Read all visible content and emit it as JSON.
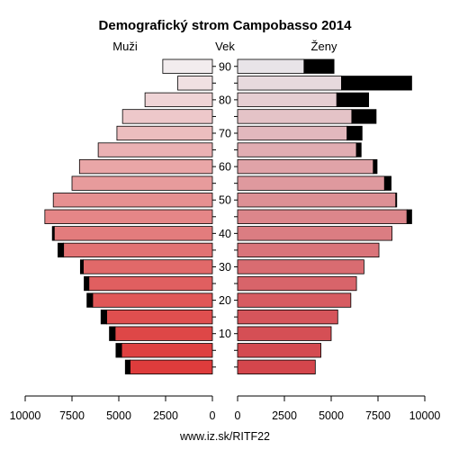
{
  "chart_data": {
    "type": "bar",
    "orientation": "horizontal",
    "title": "Demografický strom Campobasso 2014",
    "left_label": "Muži",
    "center_label": "Vek",
    "right_label": "Ženy",
    "footer": "www.iz.sk/RITF22",
    "age_groups": [
      "0-4",
      "5-9",
      "10-14",
      "15-19",
      "20-24",
      "25-29",
      "30-34",
      "35-39",
      "40-44",
      "45-49",
      "50-54",
      "55-59",
      "60-64",
      "65-69",
      "70-74",
      "75-79",
      "80-84",
      "85-89",
      "90+"
    ],
    "age_tick_labels": [
      "10",
      "20",
      "30",
      "40",
      "50",
      "60",
      "70",
      "80",
      "90"
    ],
    "x_tick_labels_left": [
      "10000",
      "7500",
      "5000",
      "2500",
      "0"
    ],
    "x_tick_labels_right": [
      "0",
      "2500",
      "5000",
      "7500",
      "10000"
    ],
    "xlim": [
      0,
      10000
    ],
    "series": [
      {
        "name": "Muži",
        "values": [
          4400,
          4850,
          5200,
          5650,
          6400,
          6600,
          6900,
          7950,
          8450,
          8950,
          8500,
          7500,
          7100,
          6100,
          5100,
          4800,
          3600,
          1850,
          2650
        ],
        "surplus": [
          250,
          300,
          300,
          300,
          300,
          250,
          150,
          300,
          100,
          0,
          0,
          0,
          0,
          0,
          0,
          0,
          0,
          0,
          0
        ]
      },
      {
        "name": "Ženy",
        "values": [
          4150,
          4450,
          5000,
          5350,
          6050,
          6350,
          6750,
          7550,
          8250,
          9050,
          8450,
          7850,
          7250,
          6350,
          5850,
          6100,
          5300,
          5550,
          3550
        ],
        "surplus": [
          0,
          0,
          0,
          0,
          0,
          0,
          0,
          0,
          0,
          250,
          50,
          350,
          200,
          250,
          800,
          1300,
          1700,
          3750,
          1600
        ]
      }
    ],
    "colors": {
      "female_base": [
        200,
        60,
        60
      ],
      "male_base": [
        200,
        60,
        60
      ],
      "surplus": "#000000",
      "outline": "#000000"
    },
    "grid": false,
    "legend": "none"
  }
}
